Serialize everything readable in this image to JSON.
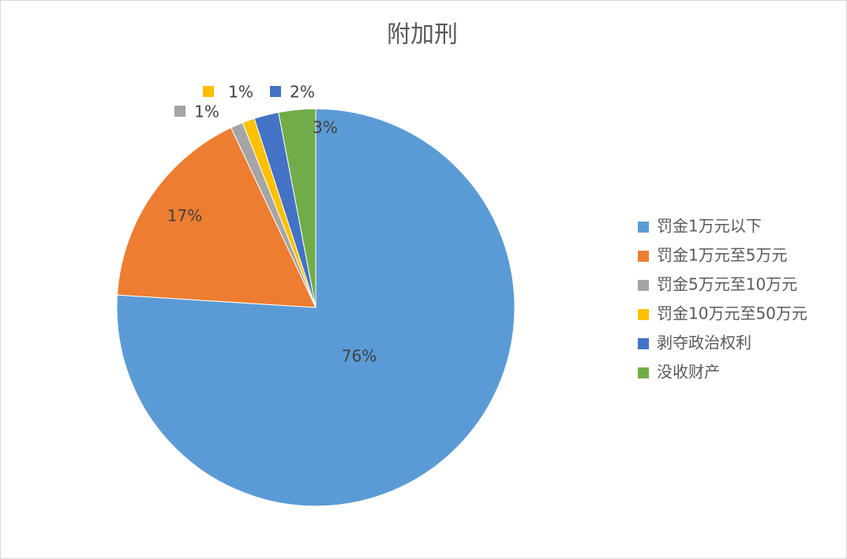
{
  "chart_data": {
    "type": "pie",
    "title": "附加刑",
    "categories": [
      "罚金1万元以下",
      "罚金1万元至5万元",
      "罚金5万元至10万元",
      "罚金10万元至50万元",
      "剥夺政治权利",
      "没收财产"
    ],
    "values": [
      76,
      17,
      1,
      1,
      2,
      3
    ],
    "value_labels": [
      "76%",
      "17%",
      "1%",
      "1%",
      "2%",
      "3%"
    ],
    "colors": [
      "#5b9bd5",
      "#ed7d31",
      "#a5a5a5",
      "#ffc000",
      "#4472c4",
      "#70ad47"
    ],
    "legend": "right"
  }
}
